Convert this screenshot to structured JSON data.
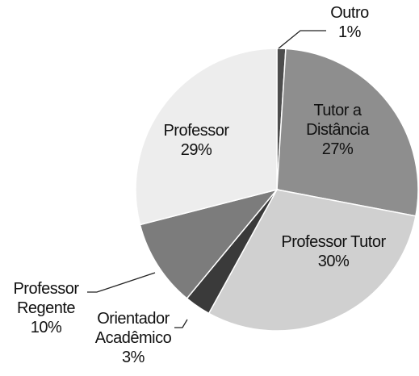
{
  "chart_data": {
    "type": "pie",
    "categories": [
      "Outro",
      "Tutor a Distância",
      "Professor Tutor",
      "Orientador Acadêmico",
      "Professor Regente",
      "Professor"
    ],
    "values": [
      1,
      27,
      30,
      3,
      10,
      29
    ],
    "value_labels": [
      "1%",
      "27%",
      "30%",
      "3%",
      "10%",
      "29%"
    ],
    "colors": [
      "#4d4d4d",
      "#8e8e8e",
      "#d0d0d0",
      "#3a3a3a",
      "#7c7c7c",
      "#ededed"
    ]
  }
}
